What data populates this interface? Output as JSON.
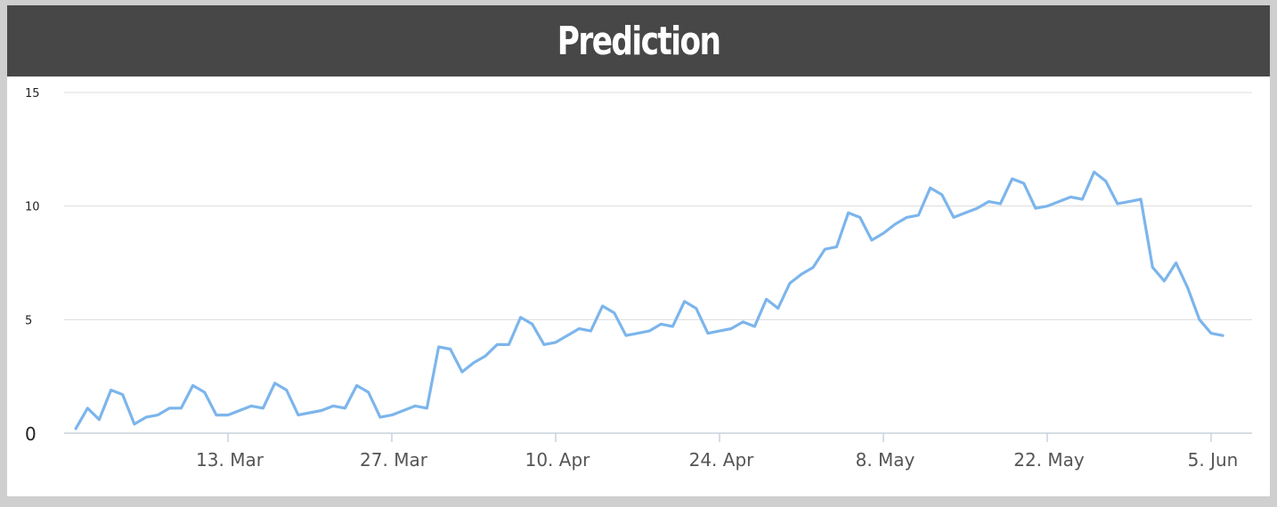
{
  "header": {
    "title": "Prediction"
  },
  "colors": {
    "header_bg": "#474747",
    "line": "#7cb5ec",
    "grid": "#dcdcdc"
  },
  "chart_data": {
    "type": "line",
    "title": "Prediction",
    "xlabel": "",
    "ylabel": "",
    "ylim": [
      0,
      15
    ],
    "grid": true,
    "legend": "none",
    "y_ticks": [
      0,
      5,
      10,
      15
    ],
    "x_ticks": [
      {
        "date": "2020-03-13",
        "label": "13. Mar"
      },
      {
        "date": "2020-03-27",
        "label": "27. Mar"
      },
      {
        "date": "2020-04-10",
        "label": "10. Apr"
      },
      {
        "date": "2020-04-24",
        "label": "24. Apr"
      },
      {
        "date": "2020-05-08",
        "label": "8. May"
      },
      {
        "date": "2020-05-22",
        "label": "22. May"
      },
      {
        "date": "2020-06-05",
        "label": "5. Jun"
      }
    ],
    "series": [
      {
        "x": [
          "2020-02-29",
          "2020-03-01",
          "2020-03-02",
          "2020-03-03",
          "2020-03-04",
          "2020-03-05",
          "2020-03-06",
          "2020-03-07",
          "2020-03-08",
          "2020-03-09",
          "2020-03-10",
          "2020-03-11",
          "2020-03-12",
          "2020-03-13",
          "2020-03-14",
          "2020-03-15",
          "2020-03-16",
          "2020-03-17",
          "2020-03-18",
          "2020-03-19",
          "2020-03-20",
          "2020-03-21",
          "2020-03-22",
          "2020-03-23",
          "2020-03-24",
          "2020-03-25",
          "2020-03-26",
          "2020-03-27",
          "2020-03-28",
          "2020-03-29",
          "2020-03-30",
          "2020-03-31",
          "2020-04-01",
          "2020-04-02",
          "2020-04-03",
          "2020-04-04",
          "2020-04-05",
          "2020-04-06",
          "2020-04-07",
          "2020-04-08",
          "2020-04-09",
          "2020-04-10",
          "2020-04-11",
          "2020-04-12",
          "2020-04-13",
          "2020-04-14",
          "2020-04-15",
          "2020-04-16",
          "2020-04-17",
          "2020-04-18",
          "2020-04-19",
          "2020-04-20",
          "2020-04-21",
          "2020-04-22",
          "2020-04-23",
          "2020-04-24",
          "2020-04-25",
          "2020-04-26",
          "2020-04-27",
          "2020-04-28",
          "2020-04-29",
          "2020-04-30",
          "2020-05-01",
          "2020-05-02",
          "2020-05-03",
          "2020-05-04",
          "2020-05-05",
          "2020-05-06",
          "2020-05-07",
          "2020-05-08",
          "2020-05-09",
          "2020-05-10",
          "2020-05-11",
          "2020-05-12",
          "2020-05-13",
          "2020-05-14",
          "2020-05-15",
          "2020-05-16",
          "2020-05-17",
          "2020-05-18",
          "2020-05-19",
          "2020-05-20",
          "2020-05-21",
          "2020-05-22",
          "2020-05-23",
          "2020-05-24",
          "2020-05-25",
          "2020-05-26",
          "2020-05-27",
          "2020-05-28",
          "2020-05-29",
          "2020-05-30",
          "2020-05-31",
          "2020-06-01",
          "2020-06-02",
          "2020-06-03",
          "2020-06-04",
          "2020-06-05",
          "2020-06-06"
        ],
        "values": [
          0.2,
          1.1,
          0.6,
          1.9,
          1.7,
          0.4,
          0.7,
          0.8,
          1.1,
          1.1,
          2.1,
          1.8,
          0.8,
          0.8,
          1.0,
          1.2,
          1.1,
          2.2,
          1.9,
          0.8,
          0.9,
          1.0,
          1.2,
          1.1,
          2.1,
          1.8,
          0.7,
          0.8,
          1.0,
          1.2,
          1.1,
          3.8,
          3.7,
          2.7,
          3.1,
          3.4,
          3.9,
          3.9,
          5.1,
          4.8,
          3.9,
          4.0,
          4.3,
          4.6,
          4.5,
          5.6,
          5.3,
          4.3,
          4.4,
          4.5,
          4.8,
          4.7,
          5.8,
          5.5,
          4.4,
          4.5,
          4.6,
          4.9,
          4.7,
          5.9,
          5.5,
          6.6,
          7.0,
          7.3,
          8.1,
          8.2,
          9.7,
          9.5,
          8.5,
          8.8,
          9.2,
          9.5,
          9.6,
          10.8,
          10.5,
          9.5,
          9.7,
          9.9,
          10.2,
          10.1,
          11.2,
          11.0,
          9.9,
          10.0,
          10.2,
          10.4,
          10.3,
          11.5,
          11.1,
          10.1,
          10.2,
          10.3,
          7.3,
          6.7,
          7.5,
          6.4,
          5.0,
          4.4,
          4.3
        ]
      }
    ]
  }
}
